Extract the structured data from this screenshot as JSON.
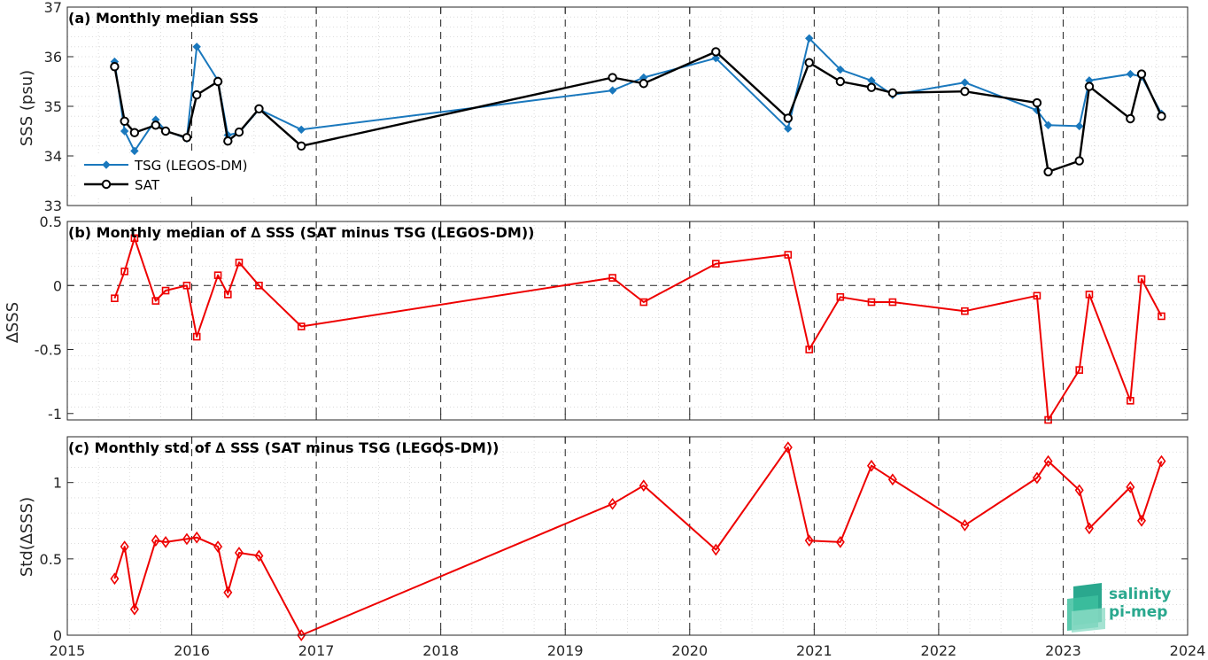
{
  "colors": {
    "tsg": "#1a78bd",
    "sat": "#000000",
    "delta": "#ee0000",
    "logo": "#2aa88e"
  },
  "logo": {
    "line1": "salinity",
    "line2": "pi-mep"
  },
  "x_axis": {
    "range": [
      2015,
      2024
    ],
    "tick_labels": [
      "2015",
      "2016",
      "2017",
      "2018",
      "2019",
      "2020",
      "2021",
      "2022",
      "2023",
      "2024"
    ]
  },
  "chart_data": [
    {
      "type": "line",
      "title": "(a) Monthly median SSS",
      "ylabel": "SSS (psu)",
      "ylim": [
        33,
        37
      ],
      "yticks": [
        33,
        34,
        35,
        36,
        37
      ],
      "ytick_labels": [
        "33",
        "34",
        "35",
        "36",
        "37"
      ],
      "grid": true,
      "legend_position": "lower-left",
      "series": [
        {
          "name": "TSG (LEGOS-DM)",
          "marker": "diamond",
          "x": [
            2015.38,
            2015.46,
            2015.54,
            2015.71,
            2015.79,
            2015.96,
            2016.04,
            2016.21,
            2016.29,
            2016.38,
            2016.54,
            2016.88,
            2019.38,
            2019.63,
            2020.21,
            2020.79,
            2020.96,
            2021.21,
            2021.46,
            2021.63,
            2022.21,
            2022.79,
            2022.88,
            2023.13,
            2023.21,
            2023.54,
            2023.63,
            2023.79
          ],
          "values": [
            35.9,
            34.5,
            34.1,
            34.73,
            34.51,
            34.35,
            36.2,
            35.52,
            34.42,
            34.47,
            34.94,
            34.53,
            35.32,
            35.58,
            35.97,
            34.55,
            36.37,
            35.74,
            35.52,
            35.23,
            35.48,
            34.92,
            34.62,
            34.6,
            35.52,
            35.65,
            35.6,
            34.85
          ]
        },
        {
          "name": "SAT",
          "marker": "circle",
          "x": [
            2015.38,
            2015.46,
            2015.54,
            2015.71,
            2015.79,
            2015.96,
            2016.04,
            2016.21,
            2016.29,
            2016.38,
            2016.54,
            2016.88,
            2019.38,
            2019.63,
            2020.21,
            2020.79,
            2020.96,
            2021.21,
            2021.46,
            2021.63,
            2022.21,
            2022.79,
            2022.88,
            2023.13,
            2023.21,
            2023.54,
            2023.63,
            2023.79
          ],
          "values": [
            35.8,
            34.7,
            34.47,
            34.62,
            34.5,
            34.37,
            35.23,
            35.5,
            34.3,
            34.48,
            34.95,
            34.2,
            35.58,
            35.46,
            36.1,
            34.76,
            35.88,
            35.5,
            35.38,
            35.27,
            35.3,
            35.07,
            33.68,
            33.9,
            35.4,
            34.75,
            35.65,
            34.8
          ]
        }
      ]
    },
    {
      "type": "line",
      "title": "(b) Monthly median of ∆ SSS (SAT minus TSG (LEGOS-DM))",
      "ylabel": "∆SSS",
      "ylim": [
        -1.05,
        0.5
      ],
      "yticks": [
        -1,
        -0.5,
        0,
        0.5
      ],
      "ytick_labels": [
        "-1",
        "-0.5",
        "0",
        "0.5"
      ],
      "grid": true,
      "reference_line": 0,
      "series": [
        {
          "marker": "square",
          "x": [
            2015.38,
            2015.46,
            2015.54,
            2015.71,
            2015.79,
            2015.96,
            2016.04,
            2016.21,
            2016.29,
            2016.38,
            2016.54,
            2016.88,
            2019.38,
            2019.63,
            2020.21,
            2020.79,
            2020.96,
            2021.21,
            2021.46,
            2021.63,
            2022.21,
            2022.79,
            2022.88,
            2023.13,
            2023.21,
            2023.54,
            2023.63,
            2023.79
          ],
          "values": [
            -0.1,
            0.11,
            0.37,
            -0.12,
            -0.04,
            0.0,
            -0.4,
            0.08,
            -0.07,
            0.18,
            0.0,
            -0.32,
            0.06,
            -0.13,
            0.17,
            0.24,
            -0.5,
            -0.09,
            -0.13,
            -0.13,
            -0.2,
            -0.08,
            -1.05,
            -0.66,
            -0.07,
            -0.9,
            0.05,
            -0.24
          ]
        }
      ]
    },
    {
      "type": "line",
      "title": "(c) Monthly std of ∆ SSS (SAT minus TSG (LEGOS-DM))",
      "ylabel": "Std(∆SSS)",
      "ylim": [
        0,
        1.3
      ],
      "yticks": [
        0,
        0.5,
        1
      ],
      "ytick_labels": [
        "0",
        "0.5",
        "1"
      ],
      "grid": true,
      "series": [
        {
          "marker": "diamond",
          "x": [
            2015.38,
            2015.46,
            2015.54,
            2015.71,
            2015.79,
            2015.96,
            2016.04,
            2016.21,
            2016.29,
            2016.38,
            2016.54,
            2016.88,
            2019.38,
            2019.63,
            2020.21,
            2020.79,
            2020.96,
            2021.21,
            2021.46,
            2021.63,
            2022.21,
            2022.79,
            2022.88,
            2023.13,
            2023.21,
            2023.54,
            2023.63,
            2023.79
          ],
          "values": [
            0.37,
            0.58,
            0.17,
            0.62,
            0.61,
            0.63,
            0.64,
            0.58,
            0.28,
            0.54,
            0.52,
            0.0,
            0.86,
            0.98,
            0.56,
            1.23,
            0.62,
            0.61,
            1.11,
            1.02,
            0.72,
            1.03,
            1.14,
            0.95,
            0.7,
            0.97,
            0.75,
            1.14
          ]
        }
      ]
    }
  ]
}
